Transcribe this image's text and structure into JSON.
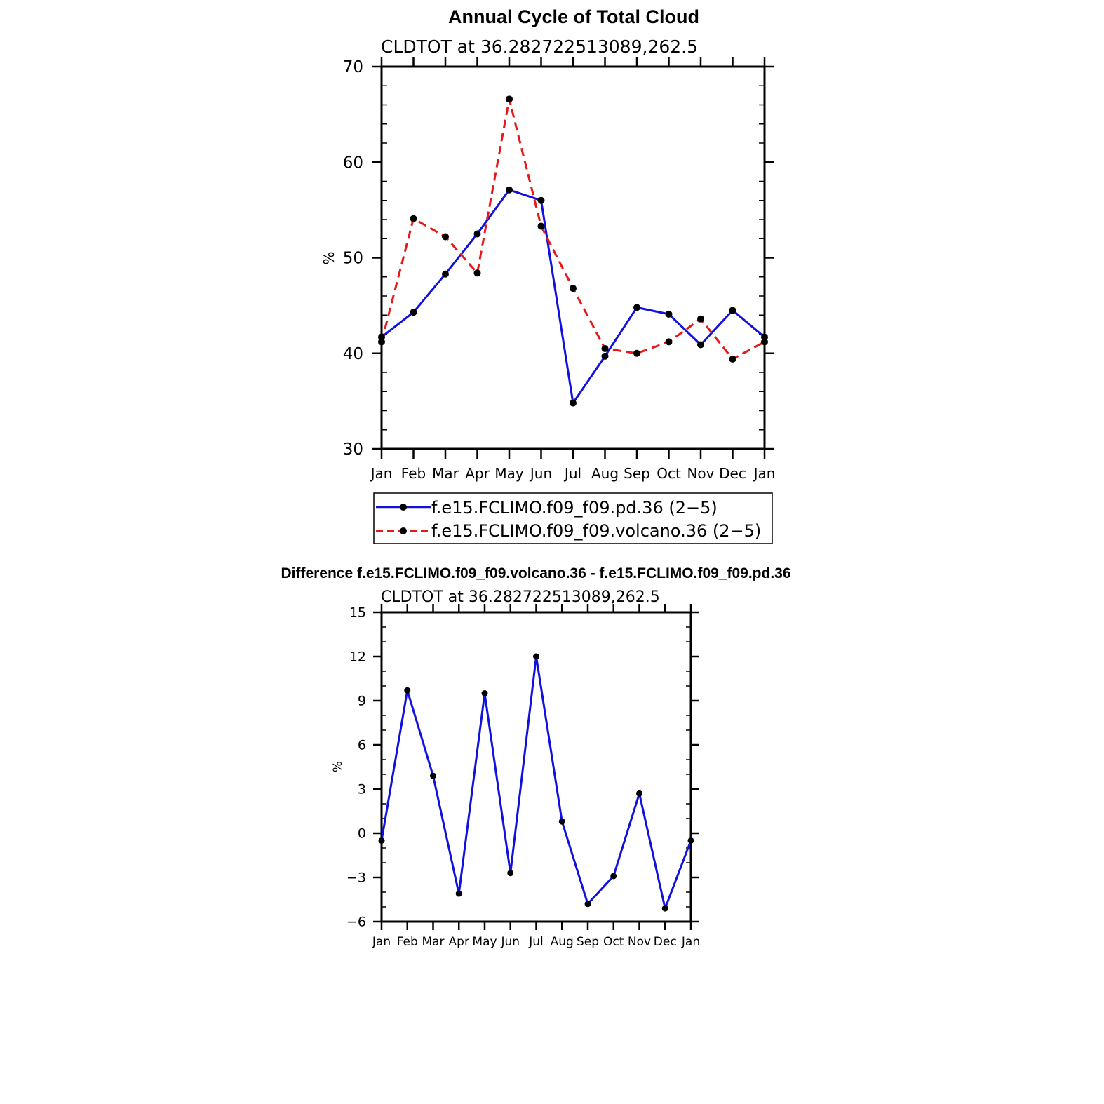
{
  "chart_data": [
    {
      "type": "line",
      "title": "Annual Cycle of Total Cloud",
      "subtitle": "CLDTOT at 36.282722513089,262.5",
      "ylabel": "%",
      "xlabel": "",
      "categories": [
        "Jan",
        "Feb",
        "Mar",
        "Apr",
        "May",
        "Jun",
        "Jul",
        "Aug",
        "Sep",
        "Oct",
        "Nov",
        "Dec",
        "Jan"
      ],
      "ylim": [
        30,
        70
      ],
      "yticks": [
        30,
        40,
        50,
        60,
        70
      ],
      "legend_position": "bottom",
      "series": [
        {
          "name": "f.e15.FCLIMO.f09_f09.pd.36 (2−5)",
          "color": "#1010e0",
          "style": "solid",
          "values": [
            41.7,
            44.3,
            48.3,
            52.5,
            57.1,
            56.0,
            34.8,
            39.7,
            44.8,
            44.1,
            40.9,
            44.5,
            41.7
          ]
        },
        {
          "name": "f.e15.FCLIMO.f09_f09.volcano.36 (2−5)",
          "color": "#e81818",
          "style": "dashed",
          "values": [
            41.2,
            54.1,
            52.2,
            48.4,
            66.6,
            53.3,
            46.8,
            40.5,
            40.0,
            41.2,
            43.6,
            39.4,
            41.2
          ]
        }
      ]
    },
    {
      "type": "line",
      "title": "Difference f.e15.FCLIMO.f09_f09.volcano.36 - f.e15.FCLIMO.f09_f09.pd.36",
      "subtitle": "CLDTOT at 36.282722513089,262.5",
      "ylabel": "%",
      "xlabel": "",
      "categories": [
        "Jan",
        "Feb",
        "Mar",
        "Apr",
        "May",
        "Jun",
        "Jul",
        "Aug",
        "Sep",
        "Oct",
        "Nov",
        "Dec",
        "Jan"
      ],
      "ylim": [
        -6,
        15
      ],
      "yticks": [
        -6,
        -3,
        0,
        3,
        6,
        9,
        12,
        15
      ],
      "ytick_labels": [
        "−6",
        "−3",
        "0",
        "3",
        "6",
        "9",
        "12",
        "15"
      ],
      "series": [
        {
          "color": "#1010e0",
          "style": "solid",
          "values": [
            -0.5,
            9.7,
            3.9,
            -4.1,
            9.5,
            -2.7,
            12.0,
            0.8,
            -4.8,
            -2.9,
            2.7,
            -5.1,
            -0.5
          ]
        }
      ]
    }
  ]
}
